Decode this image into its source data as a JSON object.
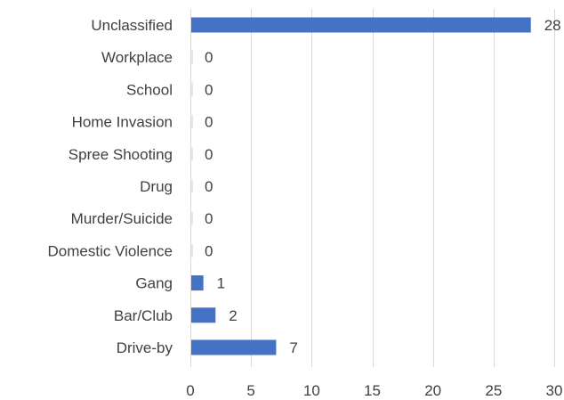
{
  "chart_data": {
    "type": "bar",
    "orientation": "horizontal",
    "categories": [
      "Unclassified",
      "Workplace",
      "School",
      "Home Invasion",
      "Spree Shooting",
      "Drug",
      "Murder/Suicide",
      "Domestic Violence",
      "Gang",
      "Bar/Club",
      "Drive-by"
    ],
    "values": [
      28,
      0,
      0,
      0,
      0,
      0,
      0,
      0,
      1,
      2,
      7
    ],
    "xlim": [
      0,
      30
    ],
    "xticks": [
      0,
      5,
      10,
      15,
      20,
      25,
      30
    ],
    "grid": true,
    "data_labels": true,
    "bar_color": "#4472c4",
    "title": "",
    "xlabel": "",
    "ylabel": ""
  }
}
